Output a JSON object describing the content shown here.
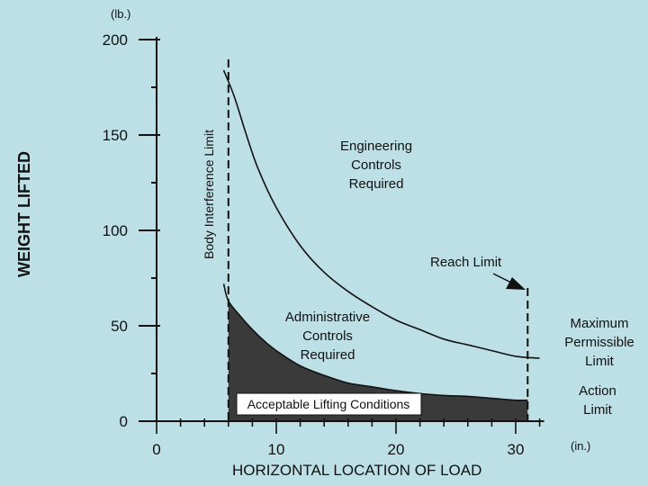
{
  "chart_data": {
    "type": "line",
    "xlabel": "HORIZONTAL LOCATION OF LOAD",
    "ylabel": "WEIGHT LIFTED",
    "x_unit": "(in.)",
    "y_unit": "(lb.)",
    "xlim": [
      0,
      32
    ],
    "ylim": [
      0,
      200
    ],
    "x_ticks": [
      0,
      10,
      20,
      30
    ],
    "y_ticks": [
      0,
      50,
      100,
      150,
      200
    ],
    "series": [
      {
        "name": "Maximum Permissible Limit",
        "x": [
          5.6,
          6.5,
          7.5,
          8.5,
          10,
          12,
          14,
          16,
          18,
          20,
          22,
          24,
          26,
          28,
          30,
          32
        ],
        "y": [
          184,
          170,
          150,
          132,
          112,
          92,
          78,
          68,
          60,
          53,
          48,
          43,
          40,
          37,
          34,
          33
        ]
      },
      {
        "name": "Action Limit",
        "x": [
          5.6,
          6,
          7,
          8,
          9,
          10,
          12,
          14,
          16,
          18,
          20,
          22,
          24,
          26,
          28,
          30,
          31
        ],
        "y": [
          72,
          63,
          55,
          48,
          42,
          37,
          29,
          24,
          20,
          18,
          16,
          14.5,
          13.5,
          13,
          12,
          11,
          11
        ]
      }
    ],
    "reference_lines": [
      {
        "x": 6,
        "label": "Body Interference Limit"
      },
      {
        "x": 31,
        "label": "Reach Limit"
      }
    ],
    "annotations": {
      "engineering": [
        "Engineering",
        "Controls",
        "Required"
      ],
      "administrative": [
        "Administrative",
        "Controls",
        "Required"
      ],
      "acceptable": "Acceptable Lifting Conditions",
      "max_permissible": [
        "Maximum",
        "Permissible",
        "Limit"
      ],
      "action_limit": [
        "Action",
        "Limit"
      ],
      "reach_limit": "Reach Limit",
      "body_interference": "Body Interference Limit"
    },
    "grid": false,
    "legend": "none"
  }
}
